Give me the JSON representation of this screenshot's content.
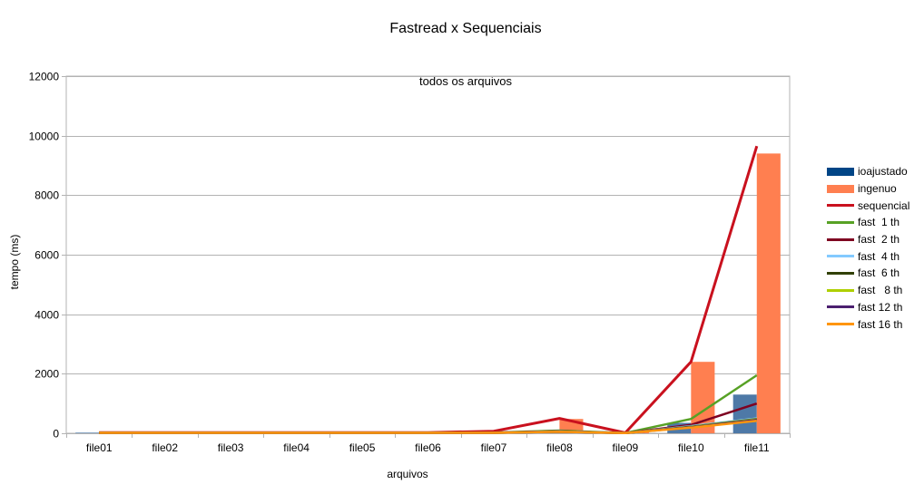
{
  "chart_data": {
    "type": "bar+line",
    "title": "Fastread x Sequenciais",
    "subtitle": "todos os arquivos",
    "xlabel": "arquivos",
    "ylabel": "tempo (ms)",
    "ylim": [
      0,
      12000
    ],
    "yticks": [
      0,
      2000,
      4000,
      6000,
      8000,
      10000,
      12000
    ],
    "grid": true,
    "legend_position": "right",
    "categories": [
      "file01",
      "file02",
      "file03",
      "file04",
      "file05",
      "file06",
      "file07",
      "file08",
      "file09",
      "file10",
      "file11"
    ],
    "series": [
      {
        "name": "ioajustado",
        "kind": "bar",
        "color": "#4e79a7",
        "legend_color": "#004586",
        "values": [
          20,
          5,
          5,
          5,
          5,
          10,
          20,
          50,
          10,
          350,
          1300
        ]
      },
      {
        "name": "ingenuo",
        "kind": "bar",
        "color": "#ff7f50",
        "legend_color": "#ff7f50",
        "values": [
          60,
          60,
          60,
          60,
          60,
          60,
          60,
          480,
          40,
          2400,
          9400
        ]
      },
      {
        "name": "sequencial",
        "kind": "line",
        "color": "#c9111e",
        "values": [
          20,
          20,
          20,
          20,
          20,
          25,
          70,
          500,
          15,
          2400,
          9650
        ]
      },
      {
        "name": "fast  1 th",
        "kind": "line",
        "color": "#57a125",
        "values": [
          15,
          15,
          15,
          15,
          15,
          15,
          25,
          90,
          10,
          480,
          1950
        ]
      },
      {
        "name": "fast  2 th",
        "kind": "line",
        "color": "#7e0021",
        "values": [
          15,
          15,
          15,
          15,
          15,
          15,
          20,
          70,
          10,
          280,
          1000
        ]
      },
      {
        "name": "fast  4 th",
        "kind": "line",
        "color": "#83caff",
        "values": [
          15,
          15,
          15,
          15,
          15,
          15,
          15,
          60,
          10,
          240,
          500
        ]
      },
      {
        "name": "fast  6 th",
        "kind": "line",
        "color": "#314004",
        "values": [
          15,
          15,
          15,
          15,
          15,
          15,
          15,
          55,
          10,
          220,
          480
        ]
      },
      {
        "name": "fast   8 th",
        "kind": "line",
        "color": "#aecf00",
        "values": [
          15,
          15,
          15,
          15,
          15,
          15,
          15,
          55,
          10,
          210,
          470
        ]
      },
      {
        "name": "fast 12 th",
        "kind": "line",
        "color": "#4b1f6f",
        "values": [
          15,
          15,
          15,
          15,
          15,
          15,
          15,
          50,
          10,
          200,
          450
        ]
      },
      {
        "name": "fast 16 th",
        "kind": "line",
        "color": "#ff950e",
        "values": [
          15,
          15,
          15,
          15,
          15,
          15,
          15,
          50,
          10,
          190,
          420
        ]
      }
    ]
  }
}
